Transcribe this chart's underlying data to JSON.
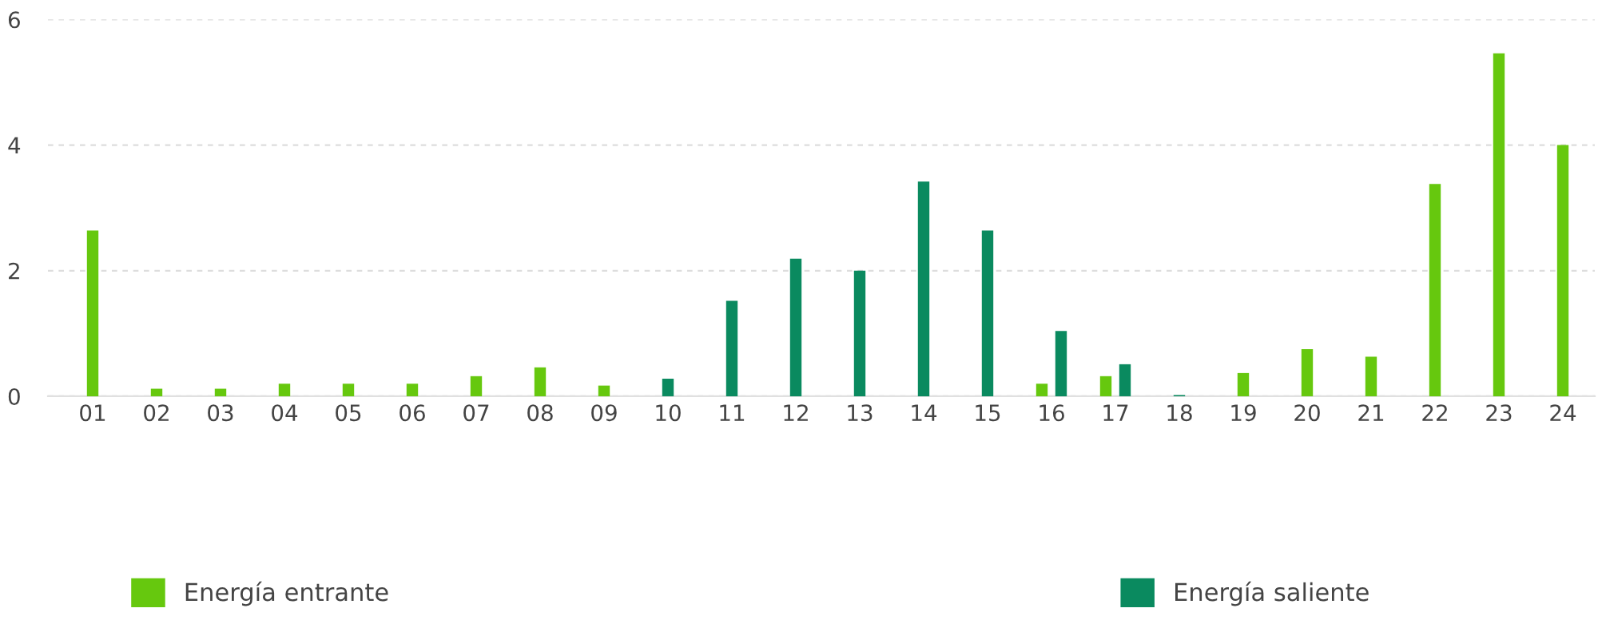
{
  "chart_data": {
    "type": "bar",
    "categories": [
      "01",
      "02",
      "03",
      "04",
      "05",
      "06",
      "07",
      "08",
      "09",
      "10",
      "11",
      "12",
      "13",
      "14",
      "15",
      "16",
      "17",
      "18",
      "19",
      "20",
      "21",
      "22",
      "23",
      "24"
    ],
    "series": [
      {
        "name": "Energía entrante",
        "color": "#66c80e",
        "values": [
          2.64,
          0.12,
          0.12,
          0.2,
          0.2,
          0.2,
          0.32,
          0.46,
          0.17,
          null,
          null,
          null,
          null,
          null,
          null,
          0.2,
          0.32,
          null,
          0.37,
          0.75,
          0.63,
          3.38,
          5.46,
          4.0
        ]
      },
      {
        "name": "Energía saliente",
        "color": "#0a8a5f",
        "values": [
          null,
          null,
          null,
          null,
          null,
          null,
          null,
          null,
          null,
          0.28,
          1.52,
          2.19,
          2.0,
          3.42,
          2.64,
          1.04,
          0.51,
          0.02,
          null,
          null,
          null,
          null,
          null,
          null
        ]
      }
    ],
    "ylim": [
      0,
      6
    ],
    "yticks": [
      0,
      2,
      4,
      6
    ],
    "grid": "y",
    "legend": "bottom"
  }
}
